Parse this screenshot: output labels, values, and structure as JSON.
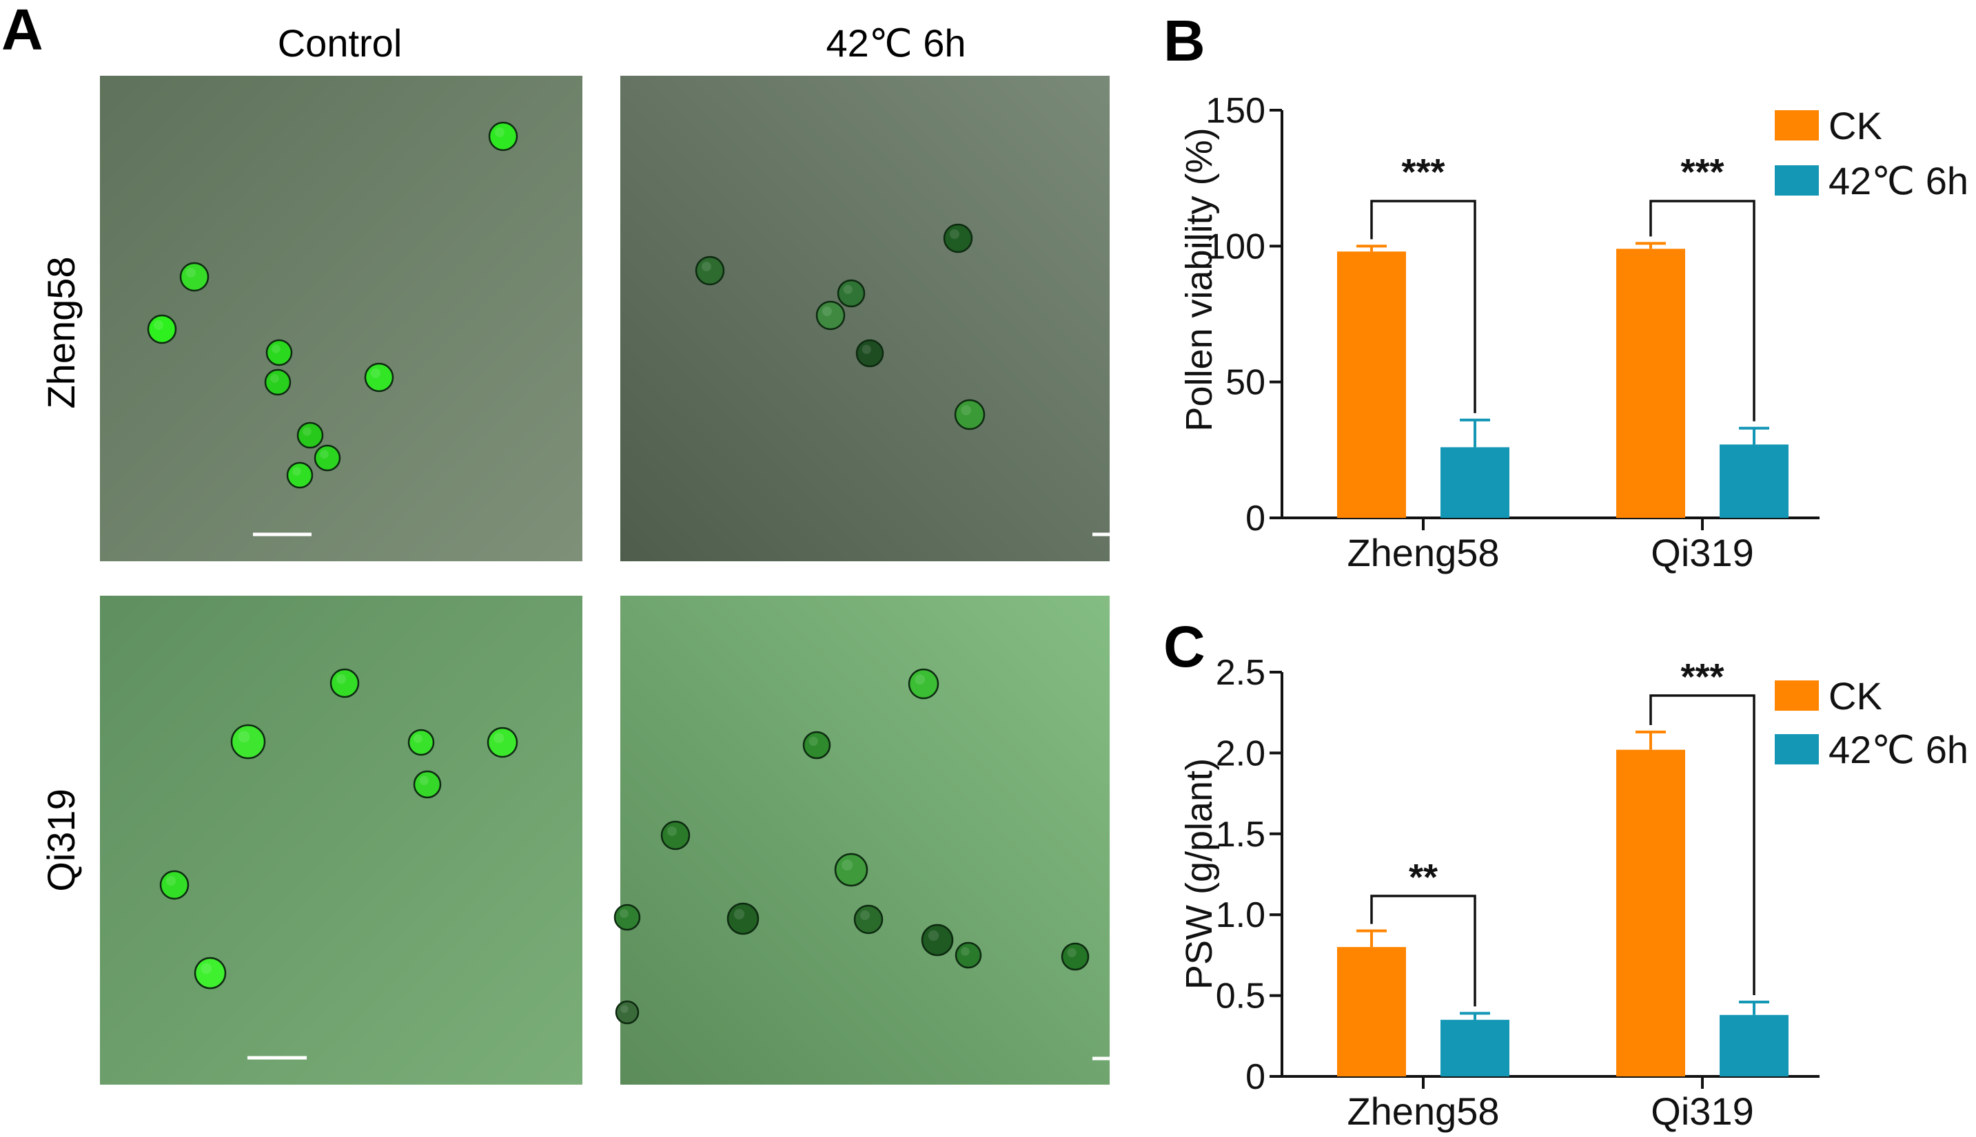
{
  "panel_a": {
    "letter": "A",
    "col_headers": [
      "Control",
      "42℃ 6h"
    ],
    "row_headers": [
      "Zheng58",
      "Qi319"
    ],
    "images": [
      {
        "label": "Zheng58 Control",
        "bg": [
          "#5f735c",
          "#7e9078"
        ],
        "pollen": [
          {
            "c": "#2ee822",
            "d": "viable"
          },
          {
            "c": "#36dc28",
            "d": "viable"
          },
          {
            "c": "#2ef01e",
            "d": "viable"
          },
          {
            "c": "#2ad81e",
            "d": "viable"
          },
          {
            "c": "#28cf1c",
            "d": "viable"
          },
          {
            "c": "#32e626",
            "d": "viable"
          },
          {
            "c": "#27c91b",
            "d": "viable"
          },
          {
            "c": "#2bd41f",
            "d": "viable"
          },
          {
            "c": "#2fdf22",
            "d": "viable"
          }
        ]
      },
      {
        "label": "Zheng58 42℃ 6h",
        "bg": [
          "#4f5d4d",
          "#7a8a78"
        ],
        "pollen": [
          {
            "c": "#1f5c23",
            "d": "dead"
          },
          {
            "c": "#2d6b2f",
            "d": "dead"
          },
          {
            "c": "#2f7434",
            "d": "dead"
          },
          {
            "c": "#3f8a40",
            "d": "dead"
          },
          {
            "c": "#1e4d22",
            "d": "dead"
          },
          {
            "c": "#3a9a35",
            "d": "dead"
          }
        ]
      },
      {
        "label": "Qi319 Control",
        "bg": [
          "#5f8f5f",
          "#7aae78"
        ],
        "pollen": [
          {
            "c": "#33dd26",
            "d": "viable"
          },
          {
            "c": "#3ee62f",
            "d": "viable"
          },
          {
            "c": "#38e22a",
            "d": "viable"
          },
          {
            "c": "#3ce82c",
            "d": "viable"
          },
          {
            "c": "#35d829",
            "d": "viable"
          },
          {
            "c": "#33df26",
            "d": "viable"
          },
          {
            "c": "#3ff02f",
            "d": "viable"
          }
        ]
      },
      {
        "label": "Qi319 42℃ 6h",
        "bg": [
          "#5b8c5a",
          "#84bd83"
        ],
        "pollen": [
          {
            "c": "#3bbd34",
            "d": "dead"
          },
          {
            "c": "#2e8a2c",
            "d": "dead"
          },
          {
            "c": "#2a7a2a",
            "d": "dead"
          },
          {
            "c": "#3e9a3b",
            "d": "dead"
          },
          {
            "c": "#215f23",
            "d": "dead"
          },
          {
            "c": "#2a6a2b",
            "d": "dead"
          },
          {
            "c": "#1f5a22",
            "d": "dead"
          },
          {
            "c": "#2a7a2c",
            "d": "dead"
          },
          {
            "c": "#257526",
            "d": "dead"
          },
          {
            "c": "#2f7f30",
            "d": "dead"
          },
          {
            "c": "#3a6a3a",
            "d": "dead"
          }
        ]
      }
    ]
  },
  "colors": {
    "ck": "#ff8400",
    "heat": "#1497b5",
    "axis": "#111111",
    "scale_bar": "#ffffff"
  },
  "chart_data": [
    {
      "panel": "B",
      "type": "bar",
      "categories": [
        "Zheng58",
        "Qi319"
      ],
      "series": [
        {
          "name": "CK",
          "values": [
            98,
            99
          ],
          "errors": [
            2,
            2
          ]
        },
        {
          "name": "42℃ 6h",
          "values": [
            26,
            27
          ],
          "errors": [
            10,
            6
          ]
        }
      ],
      "ylabel": "Pollen viability (%)",
      "ylim": [
        0,
        150
      ],
      "yticks": [
        "0",
        "50",
        "100",
        "150"
      ],
      "significance": [
        "***",
        "***"
      ],
      "legend": "top-right",
      "grid": false
    },
    {
      "panel": "C",
      "type": "bar",
      "categories": [
        "Zheng58",
        "Qi319"
      ],
      "series": [
        {
          "name": "CK",
          "values": [
            0.8,
            2.02
          ],
          "errors": [
            0.1,
            0.11
          ]
        },
        {
          "name": "42℃ 6h",
          "values": [
            0.35,
            0.38
          ],
          "errors": [
            0.04,
            0.08
          ]
        }
      ],
      "ylabel": "PSW (g/plant)",
      "ylim": [
        0,
        2.5
      ],
      "yticks": [
        "0",
        "0.5",
        "1.0",
        "1.5",
        "2.0",
        "2.5"
      ],
      "significance": [
        "**",
        "***"
      ],
      "legend": "top-right",
      "grid": false
    }
  ]
}
